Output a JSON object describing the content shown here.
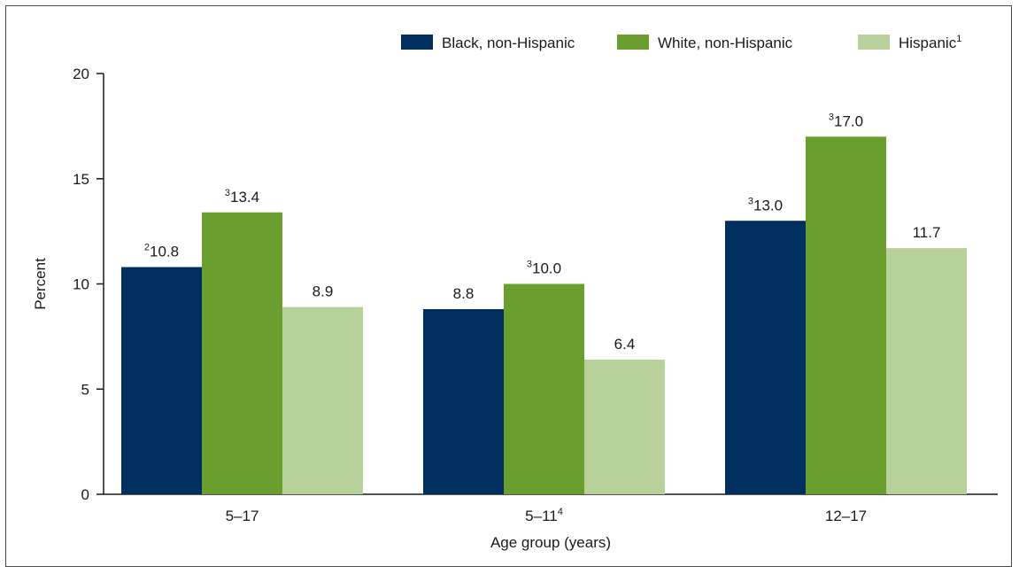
{
  "chart_data": {
    "type": "bar",
    "categories": [
      "5–17",
      "5–11",
      "12–17"
    ],
    "category_superscripts": [
      "",
      "4",
      ""
    ],
    "series": [
      {
        "name": "Black, non-Hispanic",
        "name_superscript": "",
        "color": "#002f5f",
        "values": [
          10.8,
          8.8,
          13.0
        ],
        "label_superscripts": [
          "2",
          "",
          "3"
        ]
      },
      {
        "name": "White, non-Hispanic",
        "name_superscript": "",
        "color": "#6a9e2f",
        "values": [
          13.4,
          10.0,
          17.0
        ],
        "label_superscripts": [
          "3",
          "3",
          "3"
        ]
      },
      {
        "name": "Hispanic",
        "name_superscript": "1",
        "color": "#b8d19a",
        "values": [
          8.9,
          6.4,
          11.7
        ],
        "label_superscripts": [
          "",
          "",
          ""
        ]
      }
    ],
    "xlabel": "Age group (years)",
    "ylabel": "Percent",
    "ylim": [
      0,
      20
    ],
    "yticks": [
      0,
      5,
      10,
      15,
      20
    ],
    "grid": false,
    "legend_position": "top-right"
  }
}
